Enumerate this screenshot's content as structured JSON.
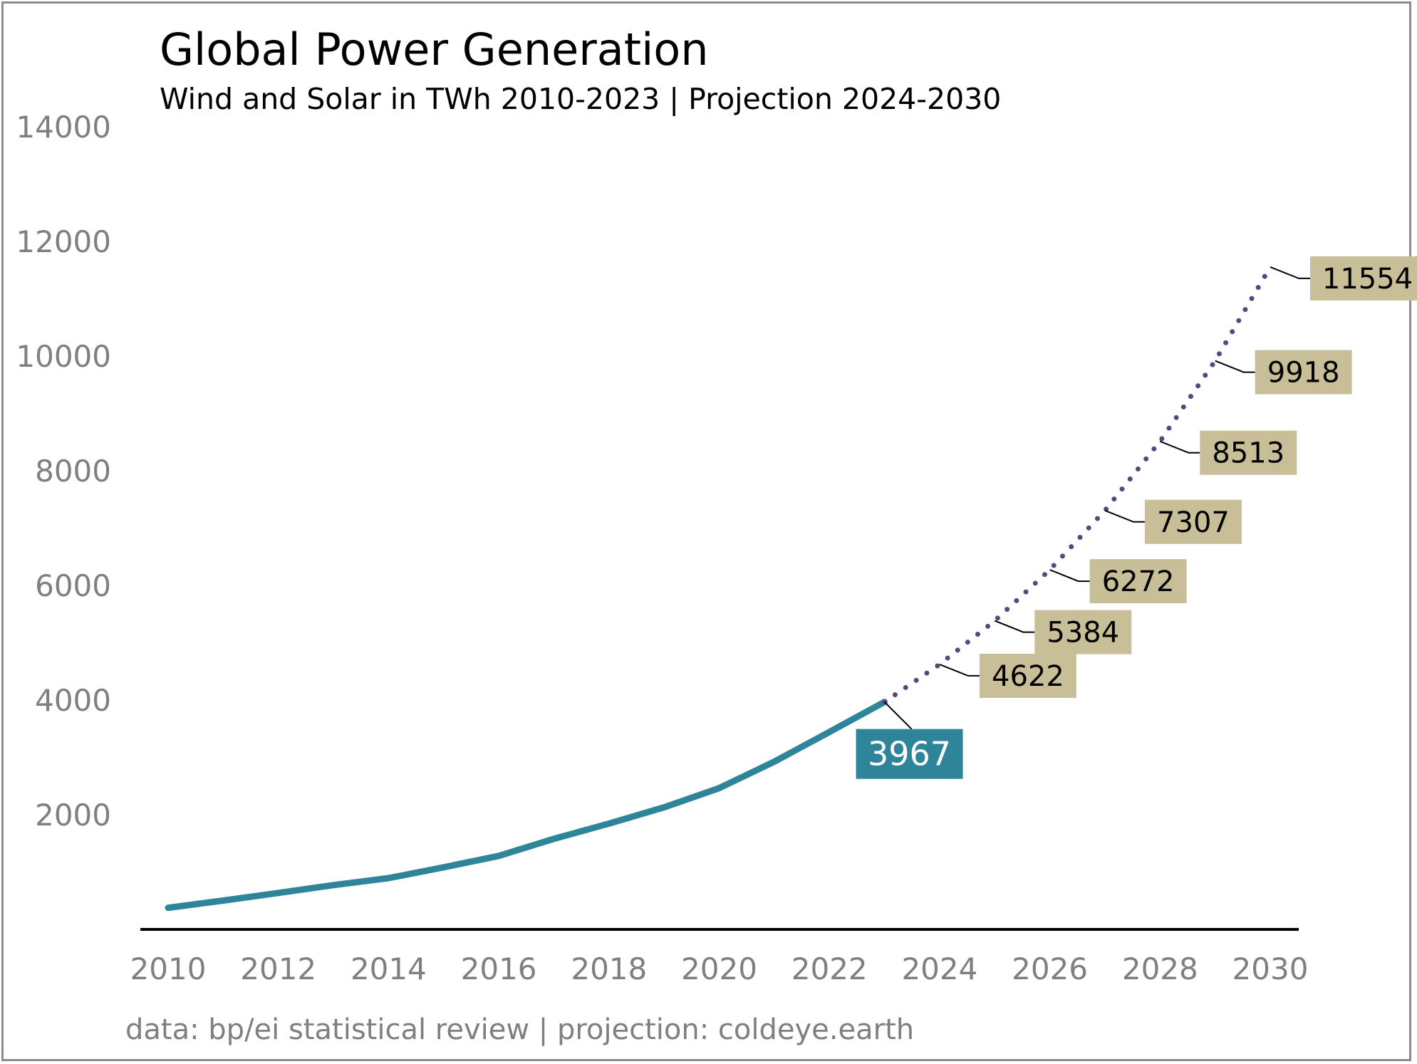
{
  "chart_data": {
    "type": "line",
    "title": "Global Power Generation",
    "subtitle": "Wind and Solar in TWh 2010-2023 | Projection 2024-2030",
    "caption": "data: bp/ei statistical review | projection: coldeye.earth",
    "xlabel": "",
    "ylabel": "",
    "xlim": [
      2010,
      2030
    ],
    "ylim": [
      0,
      14000
    ],
    "x_ticks": [
      "2010",
      "2012",
      "2014",
      "2016",
      "2018",
      "2020",
      "2022",
      "2024",
      "2026",
      "2028",
      "2030"
    ],
    "y_ticks": [
      "2000",
      "4000",
      "6000",
      "8000",
      "10000",
      "12000",
      "14000"
    ],
    "grid": false,
    "series": [
      {
        "style": "solid",
        "color": "#2e8599",
        "x": [
          2010,
          2011,
          2012,
          2013,
          2014,
          2015,
          2016,
          2017,
          2018,
          2019,
          2020,
          2021,
          2022,
          2023
        ],
        "values": [
          376,
          503,
          636,
          773,
          895,
          1083,
          1282,
          1580,
          1846,
          2129,
          2465,
          2926,
          3443,
          3967
        ]
      },
      {
        "style": "dotted",
        "color": "#5b4580",
        "x": [
          2023,
          2024,
          2025,
          2026,
          2027,
          2028,
          2029,
          2030
        ],
        "values": [
          3967,
          4622,
          5384,
          6272,
          7307,
          8513,
          9918,
          11554
        ]
      }
    ],
    "annotations": [
      {
        "x": 2023,
        "value": 3967,
        "text": "3967",
        "style": "historical",
        "color": "#2e8599"
      },
      {
        "x": 2024,
        "value": 4622,
        "text": "4622",
        "style": "projection",
        "color": "#c8bf99"
      },
      {
        "x": 2025,
        "value": 5384,
        "text": "5384",
        "style": "projection",
        "color": "#c8bf99"
      },
      {
        "x": 2026,
        "value": 6272,
        "text": "6272",
        "style": "projection",
        "color": "#c8bf99"
      },
      {
        "x": 2027,
        "value": 7307,
        "text": "7307",
        "style": "projection",
        "color": "#c8bf99"
      },
      {
        "x": 2028,
        "value": 8513,
        "text": "8513",
        "style": "projection",
        "color": "#c8bf99"
      },
      {
        "x": 2029,
        "value": 9918,
        "text": "9918",
        "style": "projection",
        "color": "#c8bf99"
      },
      {
        "x": 2030,
        "value": 11554,
        "text": "11554",
        "style": "projection",
        "color": "#c8bf99"
      }
    ]
  }
}
